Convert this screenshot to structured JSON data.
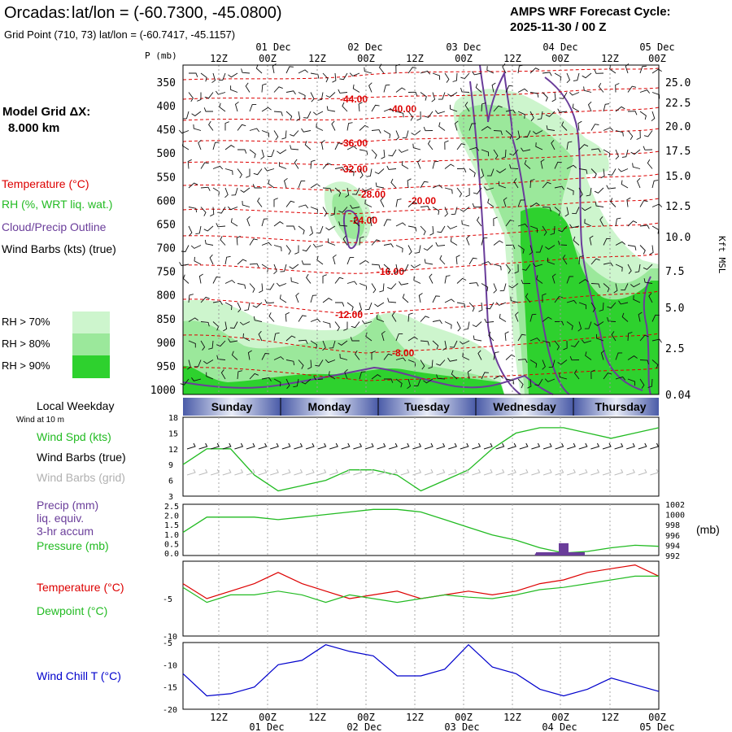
{
  "header": {
    "station": "Orcadas:",
    "latlon": "lat/lon = (-60.7300, -45.0800)",
    "grid_point": "Grid Point (710, 73) lat/lon = (-60.7417, -45.1157)",
    "cycle_title": "AMPS WRF Forecast Cycle:",
    "cycle_value": "2025-11-30 / 00  Z"
  },
  "left_panel": {
    "model_grid_line1": "Model Grid ΔX:",
    "model_grid_line2": "8.000 km",
    "legend_temperature": "Temperature (°C)",
    "legend_rh": "RH (%, WRT liq. wat.)",
    "legend_cloud": "Cloud/Precip Outline",
    "legend_wind": "Wind Barbs (kts) (true)",
    "rh_70": "RH > 70%",
    "rh_80": "RH > 80%",
    "rh_90": "RH > 90%",
    "local_weekday": "Local Weekday",
    "wind_10m": "Wind at 10 m",
    "wind_spd": "Wind Spd (kts)",
    "wind_barbs_true": "Wind Barbs (true)",
    "wind_barbs_grid": "Wind Barbs (grid)",
    "precip_l1": "Precip (mm)",
    "precip_l2": "liq. equiv.",
    "precip_l3": "3-hr accum",
    "pressure_label": "Pressure (mb)",
    "temp_label": "Temperature (°C)",
    "dewpoint_label": "Dewpoint (°C)",
    "windchill_label": "Wind Chill T (°C)",
    "mb_right": "(mb)",
    "kft_msl": "Kft MSL",
    "p_mb": "P (mb)"
  },
  "colors": {
    "rh70": "#cdf5cd",
    "rh80": "#9be89b",
    "rh90": "#2ed12e",
    "temp": "#dd0000",
    "cloud": "#6a3d9a",
    "dew": "#22bb22",
    "windchill": "#0000cc",
    "weekday_dark": "#4a5ba8",
    "weekday_light": "#e8ecf7"
  },
  "time_axis": {
    "top_tick_labels": [
      "12Z",
      "00Z",
      "12Z",
      "00Z",
      "12Z",
      "00Z",
      "12Z",
      "00Z",
      "12Z",
      "00Z"
    ],
    "date_labels": [
      "01 Dec",
      "02 Dec",
      "03 Dec",
      "04 Dec",
      "05 Dec"
    ],
    "weekdays": [
      "Sunday",
      "Monday",
      "Tuesday",
      "Wednesday",
      "Thursday"
    ]
  },
  "chart_data": [
    {
      "type": "heatmap",
      "name": "cross-section",
      "pressure_ticks": [
        "350",
        "400",
        "450",
        "500",
        "550",
        "600",
        "650",
        "700",
        "750",
        "800",
        "850",
        "900",
        "950",
        "1000"
      ],
      "height_ticks": [
        "25.0",
        "22.5",
        "20.0",
        "17.5",
        "15.0",
        "12.5",
        "10.0",
        "7.5",
        "5.0",
        "2.5",
        "0.04"
      ],
      "temperature_contour_labels": [
        "-44.00",
        "-40.00",
        "-36.00",
        "-32.00",
        "-28.00",
        "-20.00",
        "-24.00",
        "-16.00",
        "-12.00",
        "-8.00"
      ]
    },
    {
      "type": "line",
      "name": "wind speed",
      "ylabel": "Wind Spd (kts)",
      "y_ticks": [
        "18",
        "15",
        "12",
        "9",
        "6",
        "3"
      ],
      "ylim": [
        3,
        18
      ],
      "x_hours": [
        0,
        6,
        12,
        18,
        24,
        30,
        36,
        42,
        48,
        54,
        60,
        66,
        72,
        78,
        84,
        90,
        96,
        102,
        108,
        114,
        120
      ],
      "values": [
        9,
        12,
        12,
        7,
        4,
        5,
        6,
        8,
        8,
        7,
        4,
        6,
        8,
        12,
        15,
        16,
        16,
        15,
        14,
        15,
        16
      ]
    },
    {
      "type": "line",
      "name": "precip and pressure",
      "y_ticks_left": [
        "2.5",
        "2.0",
        "1.5",
        "1.0",
        "0.5",
        "0.0"
      ],
      "y_ticks_right": [
        "1002",
        "1000",
        "998",
        "996",
        "994",
        "992"
      ],
      "pressure_mb": [
        996.5,
        999.5,
        999.5,
        999.5,
        999,
        999.5,
        1000,
        1000.5,
        1001,
        1001,
        1000.5,
        999,
        997.5,
        996,
        995,
        993.5,
        992.5,
        992.8,
        993.5,
        994,
        993.8
      ],
      "precip_mm": [
        0,
        0,
        0,
        0,
        0,
        0,
        0,
        0,
        0,
        0,
        0,
        0,
        0,
        0,
        0,
        0.1,
        0.6,
        0,
        0,
        0,
        0
      ]
    },
    {
      "type": "line",
      "name": "temperature and dewpoint",
      "y_ticks": [
        "-5",
        "-10"
      ],
      "ylim": [
        -10,
        0
      ],
      "temperature": [
        -3,
        -5,
        -4,
        -3,
        -1.5,
        -3,
        -4,
        -5,
        -4.5,
        -4,
        -5,
        -4.5,
        -4,
        -4.5,
        -4,
        -3,
        -2.5,
        -1.5,
        -1,
        -0.5,
        -2
      ],
      "dewpoint": [
        -3.5,
        -5.5,
        -4.5,
        -4.5,
        -4,
        -4.5,
        -5.5,
        -4.5,
        -5,
        -5.5,
        -5,
        -4.5,
        -4.8,
        -5,
        -4.5,
        -3.8,
        -3.5,
        -3,
        -2.5,
        -2,
        -2
      ]
    },
    {
      "type": "line",
      "name": "wind chill",
      "ylabel": "Wind Chill T (°C)",
      "y_ticks": [
        "-5",
        "-10",
        "-15",
        "-20"
      ],
      "ylim": [
        -20,
        -5
      ],
      "values": [
        -12,
        -17,
        -16.5,
        -15,
        -10,
        -9,
        -5.5,
        -7,
        -8,
        -12.5,
        -12.5,
        -11,
        -5.5,
        -10.5,
        -12,
        -15.5,
        -17,
        -15.5,
        -13,
        -14.5,
        -16
      ]
    }
  ]
}
